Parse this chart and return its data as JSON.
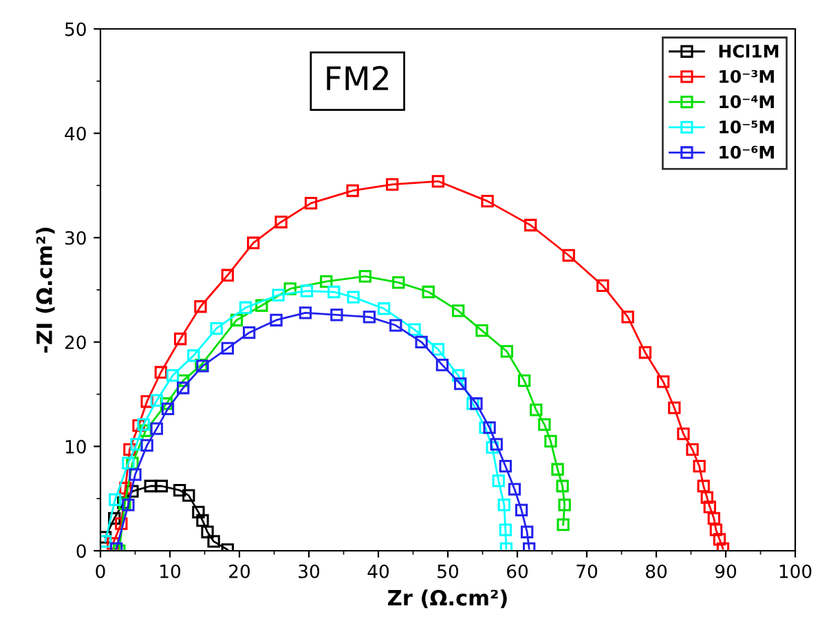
{
  "chart_data": {
    "type": "line",
    "title": "FM2",
    "xlabel": "Zr (Ω.cm²)",
    "ylabel": "-ZI (Ω.cm²)",
    "xlim": [
      0,
      100
    ],
    "ylim": [
      0,
      50
    ],
    "xticks": [
      0,
      10,
      20,
      30,
      40,
      50,
      60,
      70,
      80,
      90,
      100
    ],
    "yticks": [
      0,
      10,
      20,
      30,
      40,
      50
    ],
    "grid": false,
    "legend": "top right",
    "marker": "square",
    "line_style": "solid",
    "series": [
      {
        "name": "HCl1M",
        "color": "#000000",
        "x": [
          0.7,
          2.0,
          3.3,
          4.6,
          7.2,
          8.8,
          11.4,
          12.7,
          14.1,
          14.7,
          15.4,
          16.3,
          18.3
        ],
        "values": [
          1.3,
          3.1,
          4.6,
          5.7,
          6.2,
          6.2,
          5.8,
          5.3,
          3.7,
          2.9,
          1.8,
          0.9,
          0.1
        ]
      },
      {
        "name": "10⁻³M",
        "color": "#ff0000",
        "x": [
          1.8,
          3.0,
          3.6,
          4.2,
          5.5,
          6.7,
          8.7,
          11.5,
          14.4,
          18.3,
          22.0,
          26.0,
          30.3,
          36.3,
          42.0,
          48.6,
          55.7,
          61.9,
          67.4,
          72.3,
          75.9,
          78.4,
          81.0,
          82.6,
          83.9,
          85.2,
          86.2,
          86.8,
          87.3,
          87.7,
          88.3,
          88.6,
          89.1,
          89.6
        ],
        "values": [
          0.7,
          2.6,
          6.0,
          9.7,
          12.0,
          14.3,
          17.1,
          20.3,
          23.4,
          26.4,
          29.5,
          31.5,
          33.3,
          34.5,
          35.1,
          35.4,
          33.5,
          31.2,
          28.3,
          25.4,
          22.4,
          19.0,
          16.2,
          13.7,
          11.2,
          9.7,
          8.1,
          6.2,
          5.1,
          4.2,
          3.1,
          2.0,
          1.1,
          0.2
        ]
      },
      {
        "name": "10⁻⁴M",
        "color": "#00dd00",
        "x": [
          2.7,
          3.5,
          4.6,
          6.5,
          9.5,
          11.9,
          14.5,
          19.6,
          23.2,
          27.3,
          32.5,
          38.1,
          42.9,
          47.2,
          51.5,
          54.9,
          58.5,
          61.0,
          62.7,
          63.9,
          64.8,
          65.8,
          66.5,
          66.8,
          66.6
        ],
        "values": [
          0.0,
          4.5,
          8.4,
          11.5,
          14.1,
          16.3,
          17.8,
          22.1,
          23.5,
          25.1,
          25.8,
          26.3,
          25.7,
          24.8,
          23.0,
          21.1,
          19.1,
          16.3,
          13.5,
          12.1,
          10.5,
          7.8,
          6.2,
          4.4,
          2.5
        ]
      },
      {
        "name": "10⁻⁵M",
        "color": "#00ffff",
        "x": [
          0.7,
          2.1,
          4.0,
          5.2,
          6.2,
          8.1,
          10.4,
          13.4,
          16.7,
          20.9,
          25.6,
          29.7,
          33.6,
          36.4,
          40.8,
          45.2,
          48.6,
          51.5,
          53.6,
          55.4,
          56.4,
          57.3,
          58.1,
          58.3,
          58.4
        ],
        "values": [
          0.9,
          4.9,
          8.4,
          10.2,
          12.1,
          14.4,
          16.8,
          18.7,
          21.3,
          23.3,
          24.5,
          24.9,
          24.8,
          24.3,
          23.2,
          21.2,
          19.3,
          16.8,
          14.1,
          11.8,
          9.9,
          6.7,
          4.4,
          2.0,
          0.2
        ]
      },
      {
        "name": "10⁻⁶M",
        "color": "#2222ee",
        "x": [
          2.3,
          4.0,
          5.0,
          6.7,
          8.1,
          9.7,
          11.9,
          14.7,
          18.3,
          21.4,
          25.3,
          29.5,
          34.0,
          38.7,
          42.5,
          46.2,
          49.2,
          51.8,
          54.1,
          56.0,
          57.0,
          58.3,
          59.6,
          60.6,
          61.4,
          61.7
        ],
        "values": [
          0.2,
          4.4,
          7.3,
          10.1,
          11.7,
          13.6,
          15.6,
          17.7,
          19.4,
          20.9,
          22.1,
          22.8,
          22.6,
          22.4,
          21.6,
          20.0,
          17.8,
          16.0,
          14.1,
          11.8,
          10.2,
          8.1,
          5.9,
          3.9,
          1.8,
          0.2
        ]
      }
    ]
  }
}
